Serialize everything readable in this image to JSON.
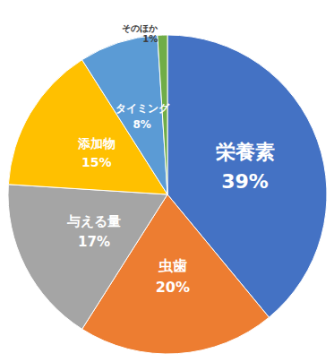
{
  "chart_data": {
    "type": "pie",
    "categories": [
      "栄養素",
      "虫歯",
      "与える量",
      "添加物",
      "タイミング",
      "そのほか"
    ],
    "values": [
      39,
      20,
      17,
      15,
      8,
      1
    ],
    "value_labels": [
      "39%",
      "20%",
      "17%",
      "15%",
      "8%",
      "1%"
    ],
    "colors": [
      "#4472c4",
      "#ed7d31",
      "#a5a5a5",
      "#ffc000",
      "#5b9bd5",
      "#70ad47"
    ],
    "data_labels": true
  }
}
